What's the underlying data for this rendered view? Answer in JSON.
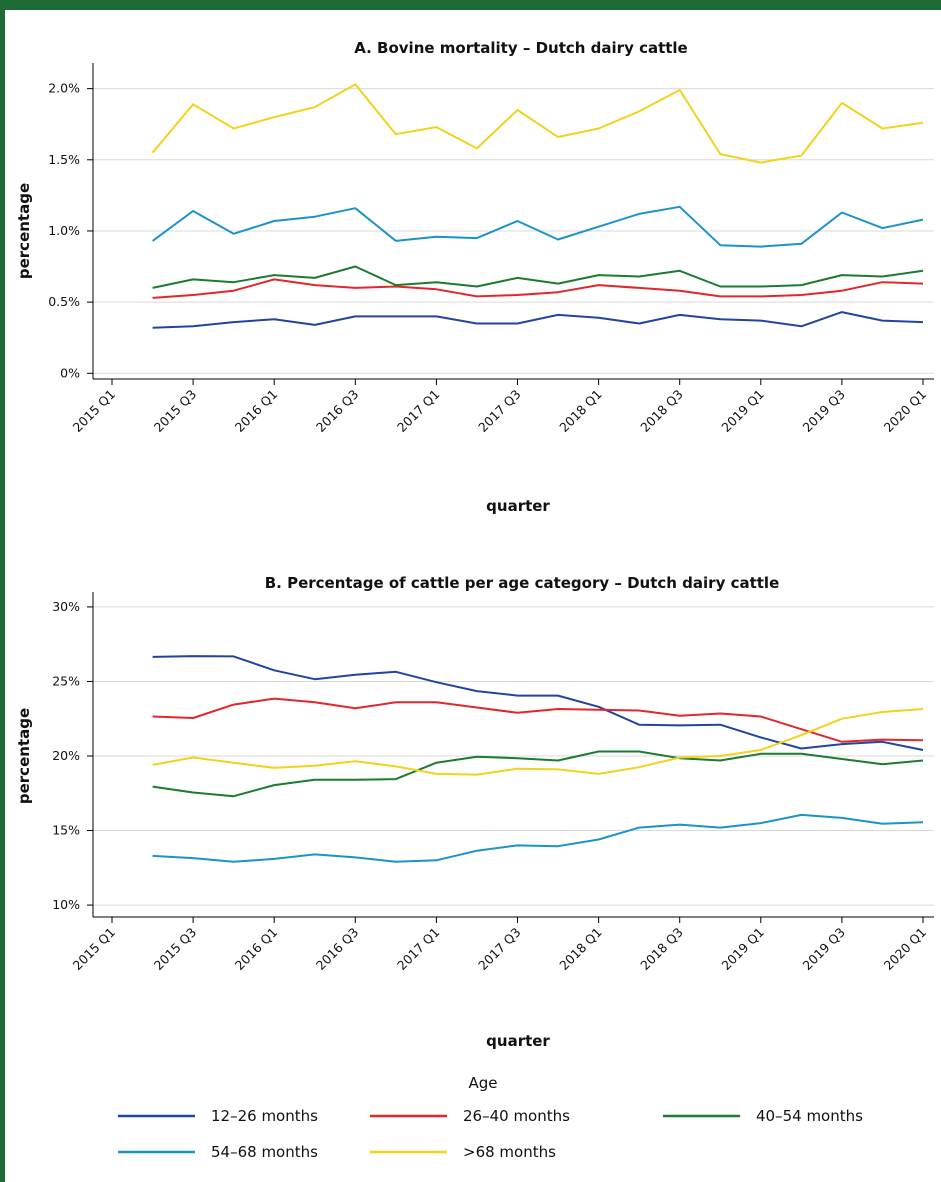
{
  "colors": {
    "frame": "#1f6b35",
    "gridline": "#d9d9d9"
  },
  "legend": {
    "title": "Age",
    "items": [
      {
        "label": "12–26 months",
        "color": "#2144a0"
      },
      {
        "label": "26–40 months",
        "color": "#e3262b"
      },
      {
        "label": "40–54 months",
        "color": "#1c7a31"
      },
      {
        "label": "54–68 months",
        "color": "#1b93c8"
      },
      {
        "label": ">68 months",
        "color": "#f2d21c"
      }
    ]
  },
  "chart_data": [
    {
      "type": "line",
      "title": "A. Bovine mortality – Dutch dairy cattle",
      "xlabel": "quarter",
      "ylabel": "percentage",
      "x_ticks": [
        "2015 Q1",
        "2015 Q3",
        "2016 Q1",
        "2016 Q3",
        "2017 Q1",
        "2017 Q3",
        "2018 Q1",
        "2018 Q3",
        "2019 Q1",
        "2019 Q3",
        "2020 Q1"
      ],
      "y_ticks": [
        "0%",
        "0.5%",
        "1.0%",
        "1.5%",
        "2.0%"
      ],
      "ylim": [
        -0.04,
        2.18
      ],
      "y_tick_values": [
        0,
        0.5,
        1.0,
        1.5,
        2.0
      ],
      "grid": true,
      "x_start": 1,
      "x_end": 21,
      "series": [
        {
          "name": "12–26 months",
          "color": "#2144a0",
          "x": [
            2,
            3,
            4,
            5,
            6,
            7,
            8,
            9,
            10,
            11,
            12,
            13,
            14,
            15,
            16,
            17,
            18,
            19,
            20,
            21
          ],
          "values": [
            0.32,
            0.33,
            0.36,
            0.38,
            0.34,
            0.4,
            0.4,
            0.4,
            0.35,
            0.35,
            0.41,
            0.39,
            0.35,
            0.41,
            0.38,
            0.37,
            0.33,
            0.43,
            0.37,
            0.36
          ]
        },
        {
          "name": "26–40 months",
          "color": "#e3262b",
          "x": [
            2,
            3,
            4,
            5,
            6,
            7,
            8,
            9,
            10,
            11,
            12,
            13,
            14,
            15,
            16,
            17,
            18,
            19,
            20,
            21
          ],
          "values": [
            0.53,
            0.55,
            0.58,
            0.66,
            0.62,
            0.6,
            0.61,
            0.59,
            0.54,
            0.55,
            0.57,
            0.62,
            0.6,
            0.58,
            0.54,
            0.54,
            0.55,
            0.58,
            0.64,
            0.63
          ]
        },
        {
          "name": "40–54 months",
          "color": "#1c7a31",
          "x": [
            2,
            3,
            4,
            5,
            6,
            7,
            8,
            9,
            10,
            11,
            12,
            13,
            14,
            15,
            16,
            17,
            18,
            19,
            20,
            21
          ],
          "values": [
            0.6,
            0.66,
            0.64,
            0.69,
            0.67,
            0.75,
            0.62,
            0.64,
            0.61,
            0.67,
            0.63,
            0.69,
            0.68,
            0.72,
            0.61,
            0.61,
            0.62,
            0.69,
            0.68,
            0.72
          ]
        },
        {
          "name": "54–68 months",
          "color": "#1b93c8",
          "x": [
            2,
            3,
            4,
            5,
            6,
            7,
            8,
            9,
            10,
            11,
            12,
            13,
            14,
            15,
            16,
            17,
            18,
            19,
            20,
            21
          ],
          "values": [
            0.93,
            1.14,
            0.98,
            1.07,
            1.1,
            1.16,
            0.93,
            0.96,
            0.95,
            1.07,
            0.94,
            1.03,
            1.12,
            1.17,
            0.9,
            0.89,
            0.91,
            1.13,
            1.02,
            1.08
          ]
        },
        {
          "name": ">68 months",
          "color": "#f2d21c",
          "x": [
            2,
            3,
            4,
            5,
            6,
            7,
            8,
            9,
            10,
            11,
            12,
            13,
            14,
            15,
            16,
            17,
            18,
            19,
            20,
            21
          ],
          "values": [
            1.55,
            1.89,
            1.72,
            1.8,
            1.87,
            2.03,
            1.68,
            1.73,
            1.58,
            1.85,
            1.66,
            1.72,
            1.84,
            1.99,
            1.54,
            1.48,
            1.53,
            1.9,
            1.72,
            1.76
          ]
        }
      ]
    },
    {
      "type": "line",
      "title": "B. Percentage of cattle per age category – Dutch dairy cattle",
      "xlabel": "quarter",
      "ylabel": "percentage",
      "x_ticks": [
        "2015 Q1",
        "2015 Q3",
        "2016 Q1",
        "2016 Q3",
        "2017 Q1",
        "2017 Q3",
        "2018 Q1",
        "2018 Q3",
        "2019 Q1",
        "2019 Q3",
        "2020 Q1"
      ],
      "y_ticks": [
        "10%",
        "15%",
        "20%",
        "25%",
        "30%"
      ],
      "ylim": [
        9.2,
        31.0
      ],
      "y_tick_values": [
        10,
        15,
        20,
        25,
        30
      ],
      "grid": true,
      "x_start": 1,
      "x_end": 21,
      "series": [
        {
          "name": "12–26 months",
          "color": "#2144a0",
          "x": [
            2,
            3,
            4,
            5,
            6,
            7,
            8,
            9,
            10,
            11,
            12,
            13,
            14,
            15,
            16,
            17,
            18,
            19,
            20,
            21
          ],
          "values": [
            26.65,
            26.7,
            26.68,
            25.75,
            25.15,
            25.45,
            25.65,
            24.95,
            24.35,
            24.05,
            24.05,
            23.3,
            22.1,
            22.05,
            22.1,
            21.25,
            20.5,
            20.8,
            20.95,
            20.4
          ]
        },
        {
          "name": "26–40 months",
          "color": "#e3262b",
          "x": [
            2,
            3,
            4,
            5,
            6,
            7,
            8,
            9,
            10,
            11,
            12,
            13,
            14,
            15,
            16,
            17,
            18,
            19,
            20,
            21
          ],
          "values": [
            22.65,
            22.55,
            23.45,
            23.85,
            23.6,
            23.2,
            23.6,
            23.6,
            23.25,
            22.9,
            23.15,
            23.1,
            23.05,
            22.7,
            22.85,
            22.65,
            21.8,
            20.95,
            21.1,
            21.05
          ]
        },
        {
          "name": "40–54 months",
          "color": "#1c7a31",
          "x": [
            2,
            3,
            4,
            5,
            6,
            7,
            8,
            9,
            10,
            11,
            12,
            13,
            14,
            15,
            16,
            17,
            18,
            19,
            20,
            21
          ],
          "values": [
            17.95,
            17.55,
            17.3,
            18.05,
            18.4,
            18.4,
            18.45,
            19.55,
            19.95,
            19.85,
            19.7,
            20.3,
            20.3,
            19.85,
            19.7,
            20.15,
            20.15,
            19.8,
            19.45,
            19.7
          ]
        },
        {
          "name": "54–68 months",
          "color": "#1b93c8",
          "x": [
            2,
            3,
            4,
            5,
            6,
            7,
            8,
            9,
            10,
            11,
            12,
            13,
            14,
            15,
            16,
            17,
            18,
            19,
            20,
            21
          ],
          "values": [
            13.3,
            13.15,
            12.9,
            13.1,
            13.4,
            13.2,
            12.9,
            13.0,
            13.65,
            14.0,
            13.95,
            14.4,
            15.2,
            15.4,
            15.2,
            15.5,
            16.05,
            15.85,
            15.45,
            15.55
          ]
        },
        {
          "name": ">68 months",
          "color": "#f2d21c",
          "x": [
            2,
            3,
            4,
            5,
            6,
            7,
            8,
            9,
            10,
            11,
            12,
            13,
            14,
            15,
            16,
            17,
            18,
            19,
            20,
            21
          ],
          "values": [
            19.4,
            19.9,
            19.55,
            19.2,
            19.35,
            19.65,
            19.3,
            18.8,
            18.75,
            19.15,
            19.1,
            18.8,
            19.25,
            19.9,
            20.0,
            20.4,
            21.4,
            22.5,
            22.95,
            23.15
          ]
        }
      ]
    }
  ]
}
